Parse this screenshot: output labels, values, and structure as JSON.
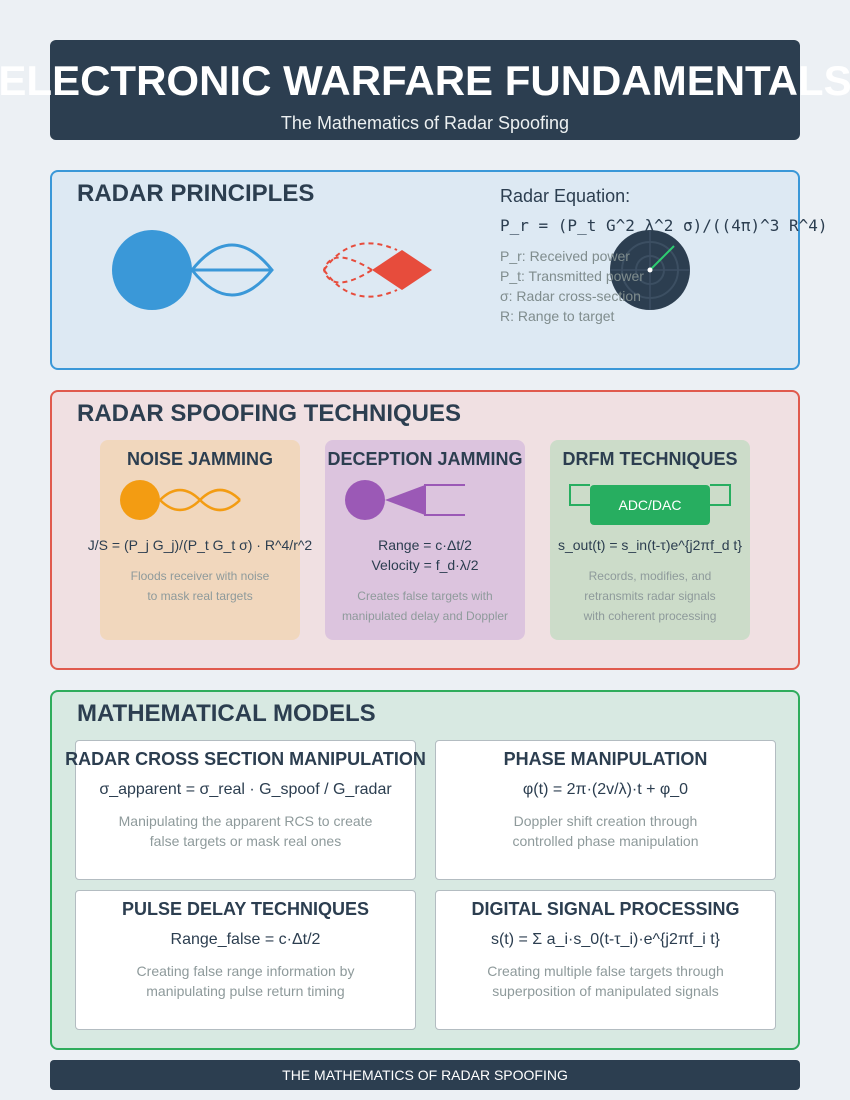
{
  "header": {
    "title": "ELECTRONIC WARFARE FUNDAMENTALS",
    "subtitle": "The Mathematics of Radar Spoofing"
  },
  "principles": {
    "title": "RADAR PRINCIPLES",
    "equation_label": "Radar Equation:",
    "equation": "P_r = (P_t G^2 λ^2 σ)/((4π)^3 R^4)",
    "variables": [
      "P_r: Received power",
      "P_t: Transmitted power",
      "σ: Radar cross-section",
      "R: Range to target"
    ]
  },
  "spoofing": {
    "title": "RADAR SPOOFING TECHNIQUES",
    "cards": [
      {
        "title": "NOISE JAMMING",
        "formula_lines": [
          "J/S = (P_j G_j)/(P_t G_t σ) · R^4/r^2"
        ],
        "desc_lines": [
          "Floods receiver with noise",
          "to mask real targets"
        ]
      },
      {
        "title": "DECEPTION JAMMING",
        "formula_lines": [
          "Range = c·Δt/2",
          "Velocity = f_d·λ/2"
        ],
        "desc_lines": [
          "Creates false targets with",
          "manipulated delay and Doppler"
        ]
      },
      {
        "title": "DRFM TECHNIQUES",
        "box_label": "ADC/DAC",
        "formula_lines": [
          "s_out(t) = s_in(t-τ)e^{j2πf_d t}"
        ],
        "desc_lines": [
          "Records, modifies, and",
          "retransmits radar signals",
          "with coherent processing"
        ]
      }
    ]
  },
  "models": {
    "title": "MATHEMATICAL MODELS",
    "cards": [
      {
        "title": "RADAR CROSS SECTION MANIPULATION",
        "formula": "σ_apparent = σ_real · G_spoof / G_radar",
        "desc_lines": [
          "Manipulating the apparent RCS to create",
          "false targets or mask real ones"
        ]
      },
      {
        "title": "PHASE MANIPULATION",
        "formula": "φ(t) = 2π·(2v/λ)·t + φ_0",
        "desc_lines": [
          "Doppler shift creation through",
          "controlled phase manipulation"
        ]
      },
      {
        "title": "PULSE DELAY TECHNIQUES",
        "formula": "Range_false = c·Δt/2",
        "desc_lines": [
          "Creating false range information by",
          "manipulating pulse return timing"
        ]
      },
      {
        "title": "DIGITAL SIGNAL PROCESSING",
        "formula": "s(t) = Σ a_i·s_0(t-τ_i)·e^{j2πf_i t}",
        "desc_lines": [
          "Creating multiple false targets through",
          "superposition of manipulated signals"
        ]
      }
    ]
  },
  "footer": {
    "text": "THE MATHEMATICS OF RADAR SPOOFING"
  },
  "colors": {
    "radar_blue": "#3a98d8",
    "jam_red": "#e74c3c",
    "noise_orange": "#f39c12",
    "deception_purple": "#9b59b6",
    "drfm_green": "#27ae60",
    "dark_navy": "#2c3e50"
  },
  "icons": [
    "radar-dish-icon",
    "radar-beam-icon",
    "target-aircraft-icon",
    "radar-scope-icon",
    "noise-wave-icon",
    "jammer-emitter-icon",
    "drfm-chip-icon"
  ]
}
